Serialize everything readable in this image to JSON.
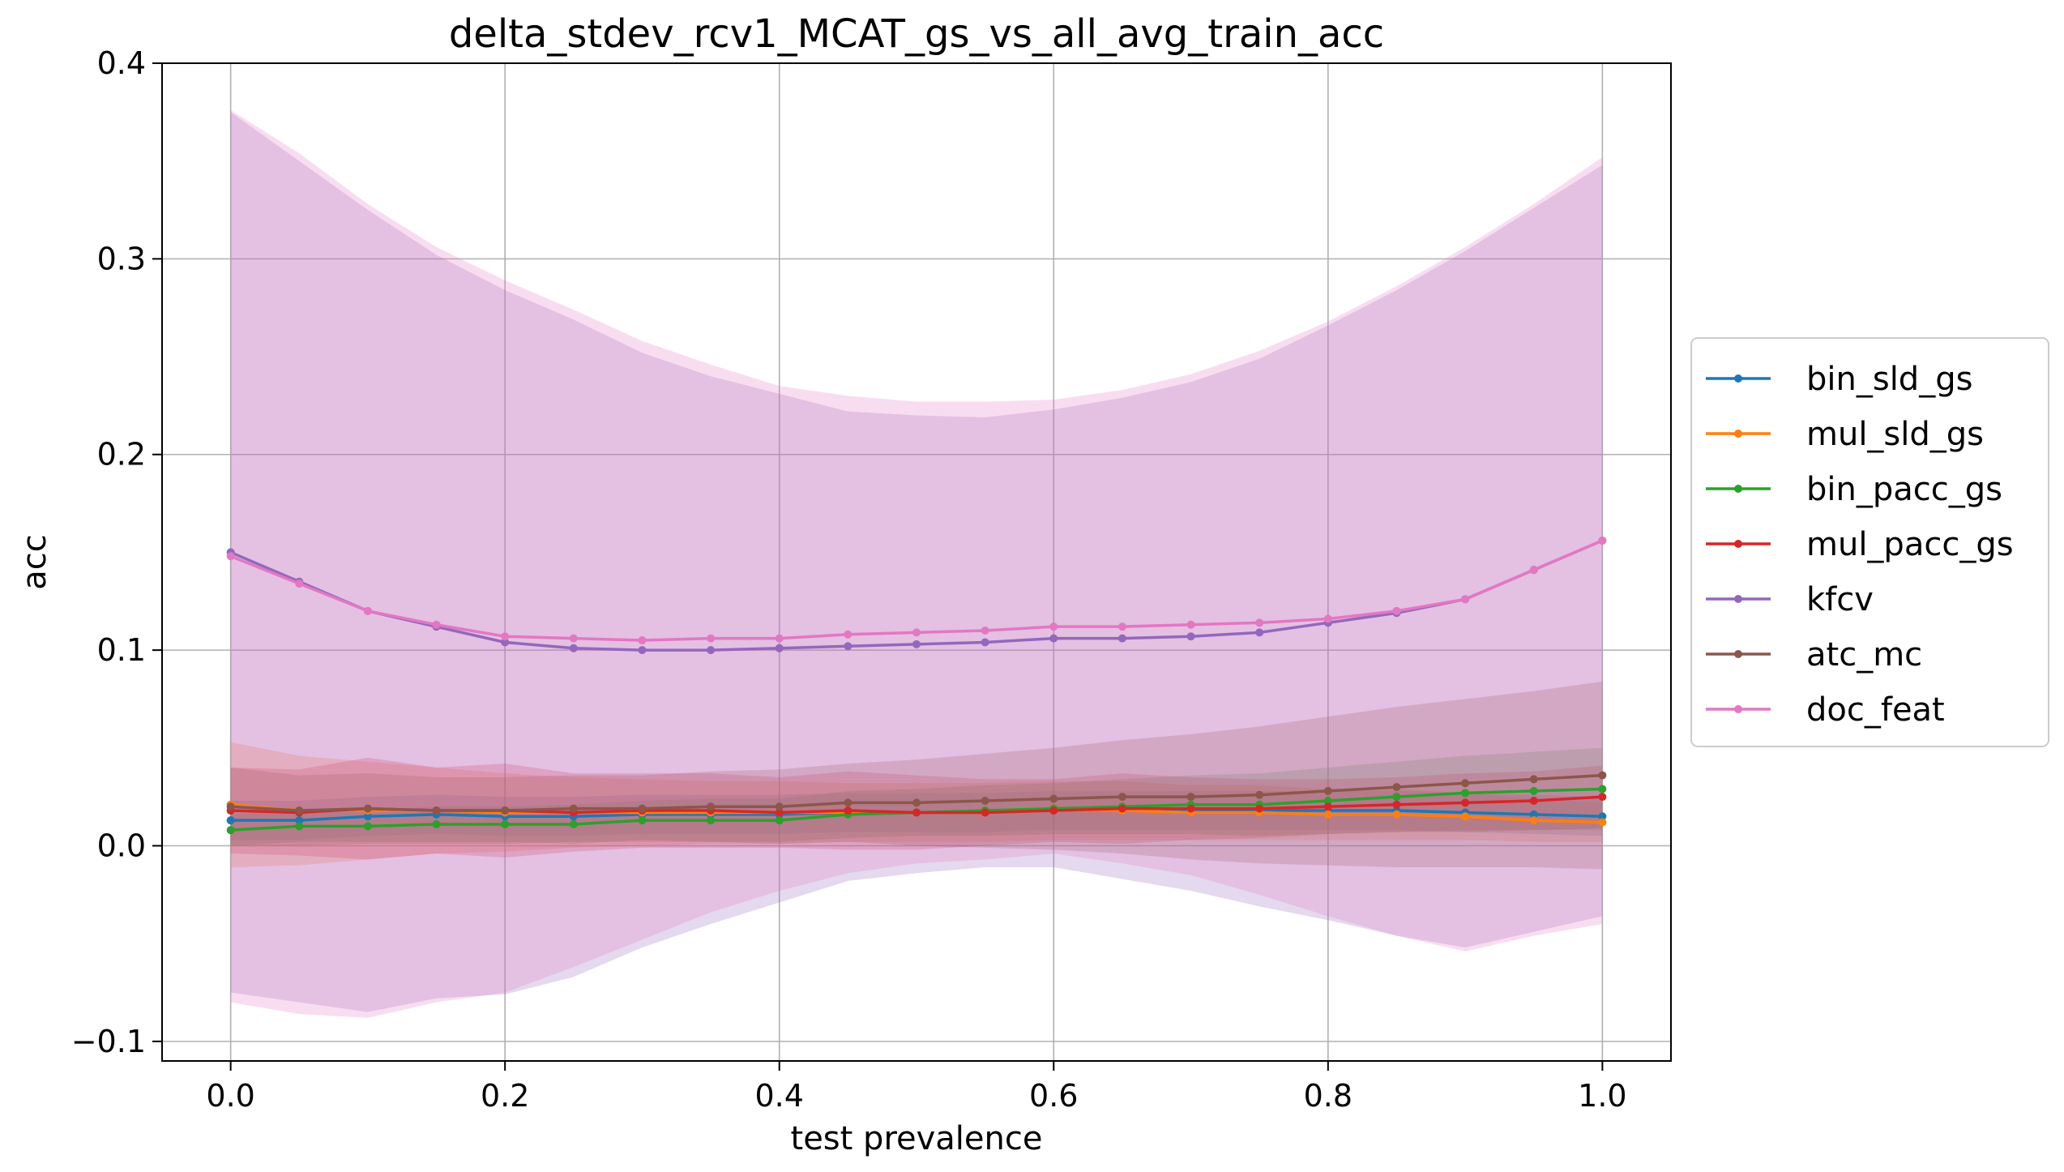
{
  "chart_data": {
    "type": "line",
    "title": "delta_stdev_rcv1_MCAT_gs_vs_all_avg_train_acc",
    "xlabel": "test prevalence",
    "ylabel": "acc",
    "xlim": [
      -0.05,
      1.05
    ],
    "ylim": [
      -0.11,
      0.4
    ],
    "xticks": [
      0.0,
      0.2,
      0.4,
      0.6,
      0.8,
      1.0
    ],
    "xtick_labels": [
      "0.0",
      "0.2",
      "0.4",
      "0.6",
      "0.8",
      "1.0"
    ],
    "yticks": [
      -0.1,
      0.0,
      0.1,
      0.2,
      0.3,
      0.4
    ],
    "ytick_labels": [
      "−0.1",
      "0.0",
      "0.1",
      "0.2",
      "0.3",
      "0.4"
    ],
    "grid": true,
    "legend_position": "right-outside",
    "x": [
      0.0,
      0.05,
      0.1,
      0.15,
      0.2,
      0.25,
      0.3,
      0.35,
      0.4,
      0.45,
      0.5,
      0.55,
      0.6,
      0.65,
      0.7,
      0.75,
      0.8,
      0.85,
      0.9,
      0.95,
      1.0
    ],
    "series": [
      {
        "name": "bin_sld_gs",
        "color": "#1f77b4",
        "values": [
          0.013,
          0.013,
          0.015,
          0.016,
          0.015,
          0.015,
          0.016,
          0.016,
          0.016,
          0.017,
          0.017,
          0.017,
          0.018,
          0.018,
          0.018,
          0.018,
          0.018,
          0.018,
          0.017,
          0.016,
          0.015
        ],
        "band": [
          0.01,
          0.01,
          0.01,
          0.01,
          0.01,
          0.01,
          0.01,
          0.01,
          0.01,
          0.01,
          0.01,
          0.01,
          0.01,
          0.01,
          0.01,
          0.01,
          0.01,
          0.01,
          0.01,
          0.01,
          0.01
        ]
      },
      {
        "name": "mul_sld_gs",
        "color": "#ff7f0e",
        "values": [
          0.021,
          0.018,
          0.018,
          0.018,
          0.017,
          0.017,
          0.017,
          0.017,
          0.017,
          0.017,
          0.017,
          0.017,
          0.018,
          0.018,
          0.017,
          0.017,
          0.016,
          0.016,
          0.015,
          0.013,
          0.012
        ],
        "band": [
          0.032,
          0.028,
          0.025,
          0.022,
          0.02,
          0.018,
          0.017,
          0.016,
          0.016,
          0.015,
          0.015,
          0.015,
          0.015,
          0.015,
          0.014,
          0.014,
          0.013,
          0.013,
          0.012,
          0.011,
          0.01
        ]
      },
      {
        "name": "bin_pacc_gs",
        "color": "#2ca02c",
        "values": [
          0.008,
          0.01,
          0.01,
          0.011,
          0.011,
          0.011,
          0.013,
          0.013,
          0.013,
          0.016,
          0.017,
          0.018,
          0.019,
          0.02,
          0.021,
          0.021,
          0.023,
          0.025,
          0.027,
          0.028,
          0.029
        ],
        "band": [
          0.008,
          0.008,
          0.008,
          0.009,
          0.009,
          0.01,
          0.01,
          0.011,
          0.011,
          0.012,
          0.012,
          0.013,
          0.013,
          0.014,
          0.015,
          0.016,
          0.017,
          0.018,
          0.019,
          0.02,
          0.021
        ]
      },
      {
        "name": "mul_pacc_gs",
        "color": "#d62728",
        "values": [
          0.018,
          0.017,
          0.019,
          0.018,
          0.018,
          0.017,
          0.018,
          0.018,
          0.017,
          0.018,
          0.017,
          0.017,
          0.018,
          0.019,
          0.019,
          0.019,
          0.02,
          0.021,
          0.022,
          0.023,
          0.025
        ],
        "band": [
          0.022,
          0.022,
          0.026,
          0.022,
          0.024,
          0.02,
          0.019,
          0.019,
          0.018,
          0.02,
          0.019,
          0.017,
          0.016,
          0.018,
          0.016,
          0.015,
          0.014,
          0.014,
          0.015,
          0.015,
          0.016
        ]
      },
      {
        "name": "kfcv",
        "color": "#9467bd",
        "values": [
          0.15,
          0.135,
          0.12,
          0.112,
          0.104,
          0.101,
          0.1,
          0.1,
          0.101,
          0.102,
          0.103,
          0.104,
          0.106,
          0.106,
          0.107,
          0.109,
          0.114,
          0.119,
          0.126,
          0.141,
          0.156
        ],
        "band": [
          0.225,
          0.215,
          0.205,
          0.19,
          0.18,
          0.168,
          0.152,
          0.14,
          0.13,
          0.12,
          0.117,
          0.115,
          0.117,
          0.123,
          0.13,
          0.14,
          0.152,
          0.165,
          0.178,
          0.185,
          0.192
        ]
      },
      {
        "name": "atc_mc",
        "color": "#8c564b",
        "values": [
          0.02,
          0.018,
          0.019,
          0.018,
          0.018,
          0.019,
          0.019,
          0.02,
          0.02,
          0.022,
          0.022,
          0.023,
          0.024,
          0.025,
          0.025,
          0.026,
          0.028,
          0.03,
          0.032,
          0.034,
          0.036
        ],
        "band": [
          0.02,
          0.018,
          0.018,
          0.017,
          0.017,
          0.017,
          0.017,
          0.018,
          0.019,
          0.02,
          0.022,
          0.024,
          0.026,
          0.029,
          0.032,
          0.035,
          0.038,
          0.041,
          0.043,
          0.045,
          0.048
        ]
      },
      {
        "name": "doc_feat",
        "color": "#e377c2",
        "values": [
          0.148,
          0.134,
          0.12,
          0.113,
          0.107,
          0.106,
          0.105,
          0.106,
          0.106,
          0.108,
          0.109,
          0.11,
          0.112,
          0.112,
          0.113,
          0.114,
          0.116,
          0.12,
          0.126,
          0.141,
          0.156
        ],
        "band": [
          0.228,
          0.22,
          0.208,
          0.193,
          0.182,
          0.168,
          0.153,
          0.14,
          0.129,
          0.122,
          0.118,
          0.117,
          0.116,
          0.121,
          0.128,
          0.139,
          0.152,
          0.166,
          0.18,
          0.187,
          0.196
        ]
      }
    ]
  }
}
